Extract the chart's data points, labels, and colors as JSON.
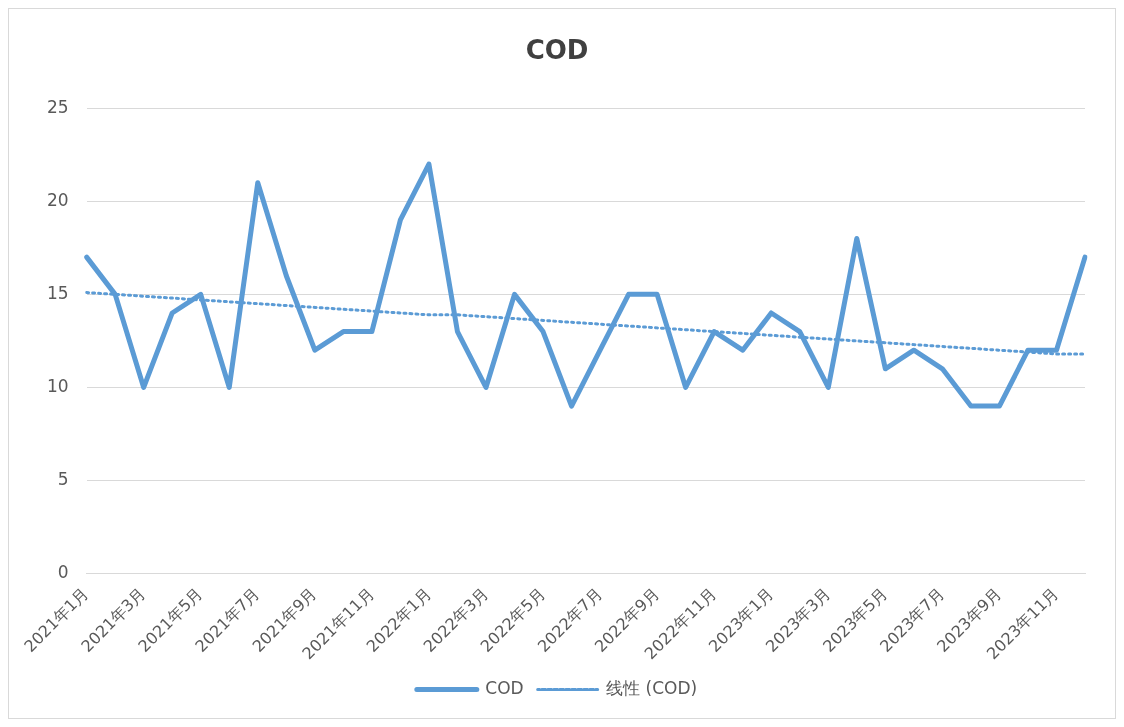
{
  "chart_data": {
    "type": "line",
    "title": "COD",
    "categories": [
      "2021年1月",
      null,
      "2021年3月",
      null,
      "2021年5月",
      null,
      "2021年7月",
      null,
      "2021年9月",
      null,
      "2021年11月",
      null,
      "2022年1月",
      null,
      "2022年3月",
      null,
      "2022年5月",
      null,
      "2022年7月",
      null,
      "2022年9月",
      null,
      "2022年11月",
      null,
      "2023年1月",
      null,
      "2023年3月",
      null,
      "2023年5月",
      null,
      "2023年7月",
      null,
      "2023年9月",
      null,
      "2023年11月",
      null
    ],
    "series": [
      {
        "name": "COD",
        "color": "#5b9bd5",
        "line_style": "solid",
        "values": [
          17,
          15,
          10,
          14,
          15,
          10,
          21,
          16,
          12,
          13,
          13,
          19,
          22,
          13,
          10,
          15,
          13,
          9,
          12,
          15,
          15,
          10,
          13,
          12,
          14,
          13,
          10,
          18,
          11,
          12,
          11,
          9,
          9,
          12,
          12,
          17
        ]
      },
      {
        "name": "线性 (COD)",
        "color": "#5b9bd5",
        "line_style": "dotted",
        "values": [
          15.1,
          15.0,
          14.9,
          14.8,
          14.7,
          14.6,
          14.5,
          14.4,
          14.3,
          14.2,
          14.1,
          14.0,
          13.9,
          13.9,
          13.8,
          13.7,
          13.6,
          13.5,
          13.4,
          13.3,
          13.2,
          13.1,
          13.0,
          12.9,
          12.8,
          12.7,
          12.6,
          12.5,
          12.4,
          12.3,
          12.2,
          12.1,
          12.0,
          11.9,
          11.8,
          11.8
        ]
      }
    ],
    "ylim": [
      0,
      25
    ],
    "yticks": [
      0,
      5,
      10,
      15,
      20,
      25
    ],
    "grid": "y",
    "legend": "bottom",
    "marker": "none"
  }
}
